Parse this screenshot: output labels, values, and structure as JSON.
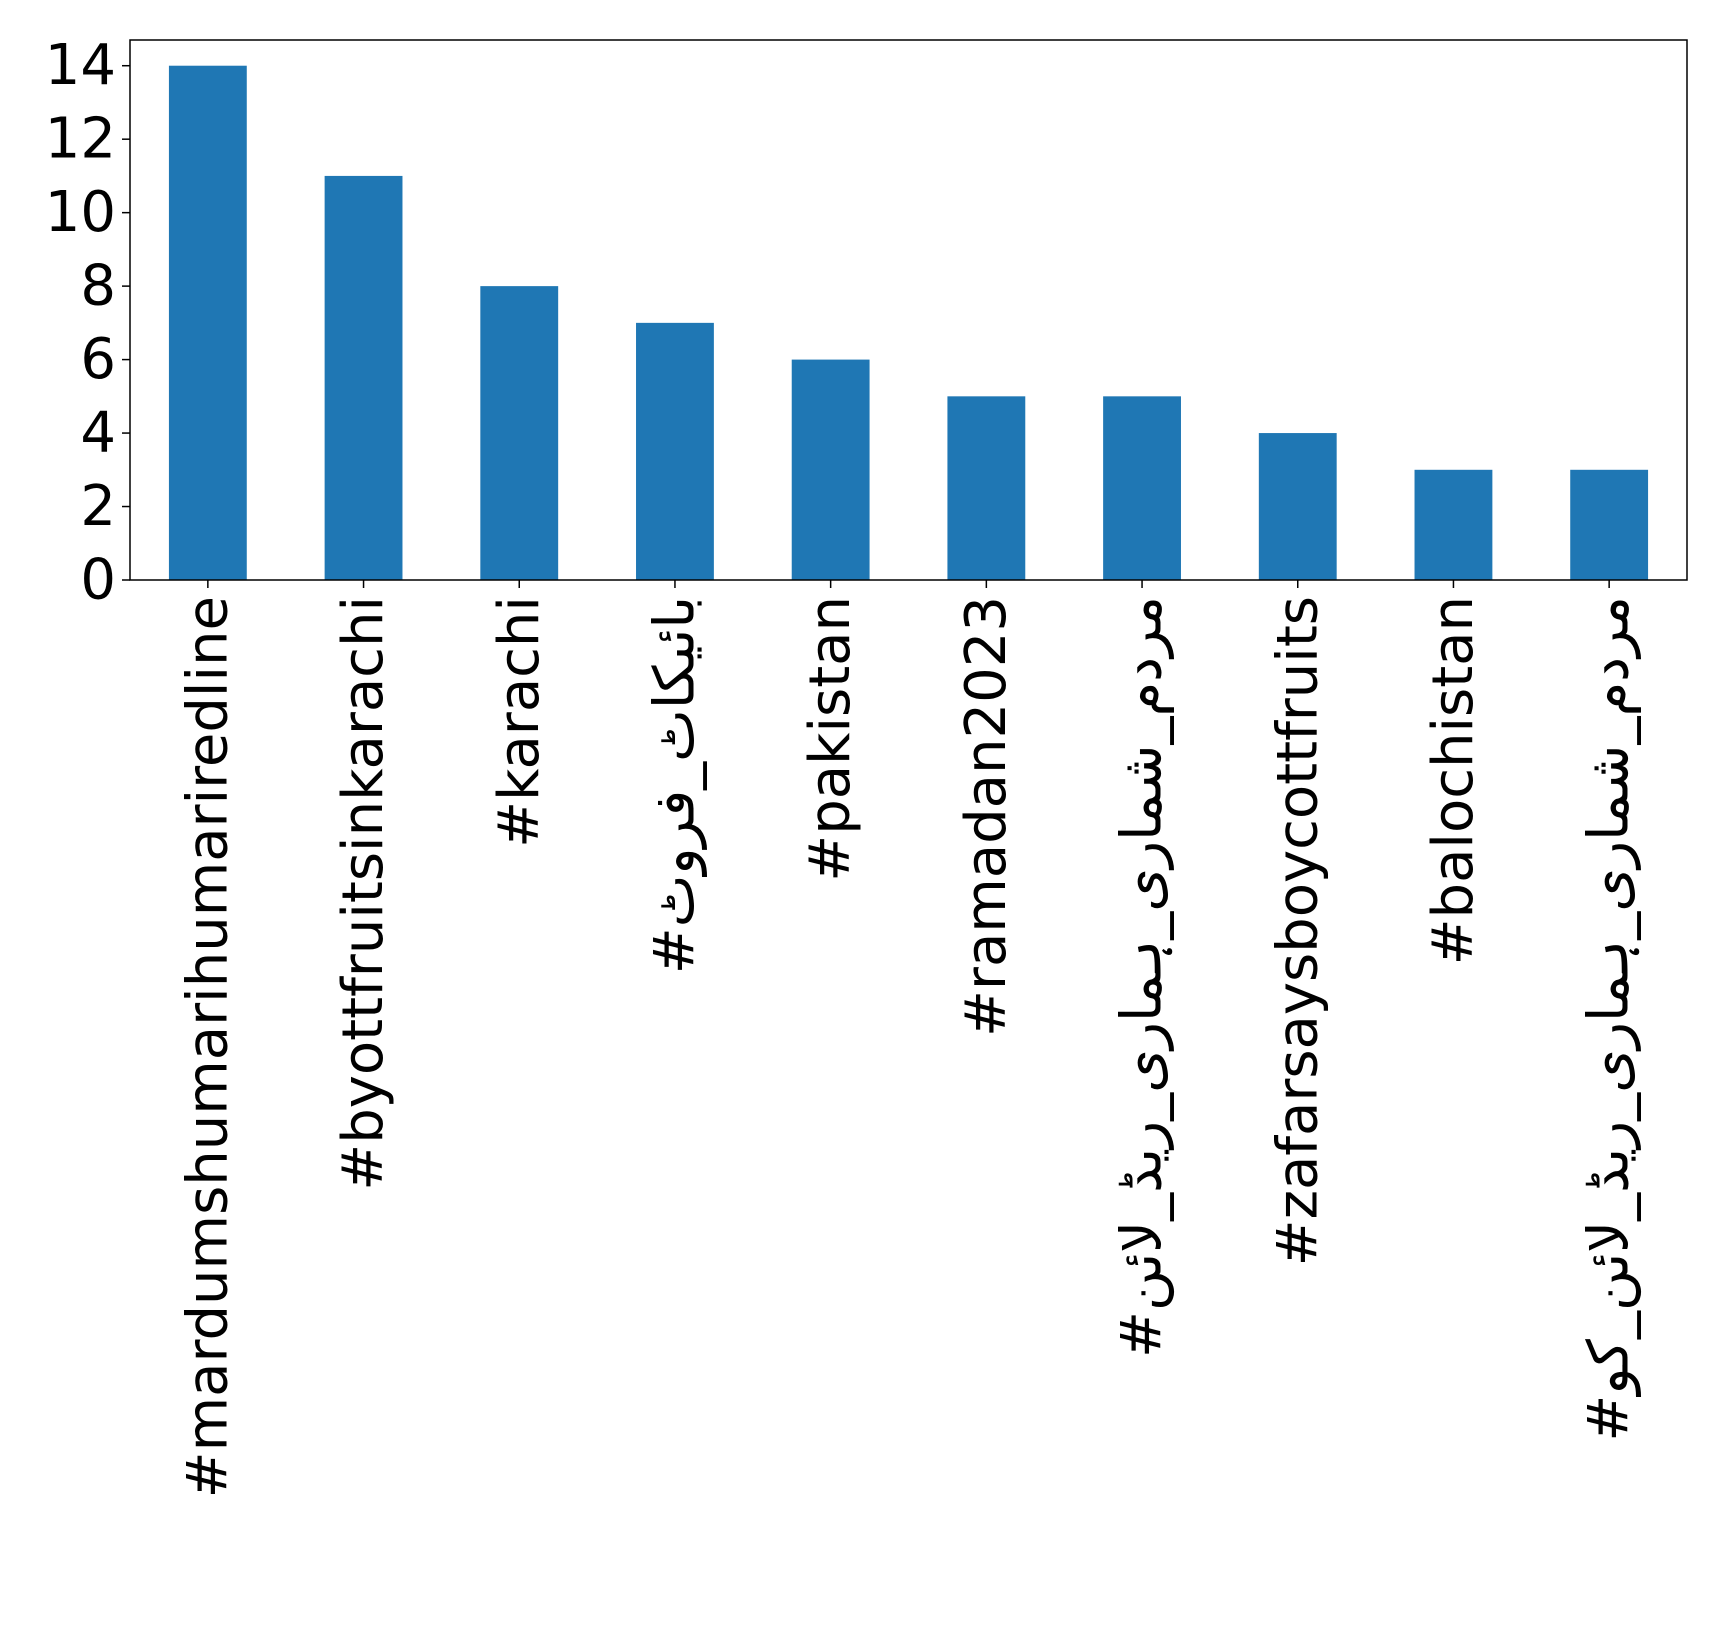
{
  "chart_data": {
    "type": "bar",
    "title": "",
    "xlabel": "",
    "ylabel": "",
    "categories": [
      "#mardumshumarihumariredline",
      "#byottfruitsinkarachi",
      "#karachi",
      "#بائیکاٹ_فروٹ",
      "#pakistan",
      "#ramadan2023",
      "#مردم_شماری_ہماری_ریڈ_لائن",
      "#zafarsaysboycottfruits",
      "#balochistan",
      "#مردم_شماری_ہماری_ریڈ_لائن_کو"
    ],
    "values": [
      14,
      11,
      8,
      7,
      6,
      5,
      5,
      4,
      3,
      3
    ],
    "ylim": [
      0,
      14.7
    ],
    "yticks": [
      0,
      2,
      4,
      6,
      8,
      10,
      12,
      14
    ],
    "grid": false,
    "legend": "none",
    "bar_color": "#1f77b4"
  }
}
